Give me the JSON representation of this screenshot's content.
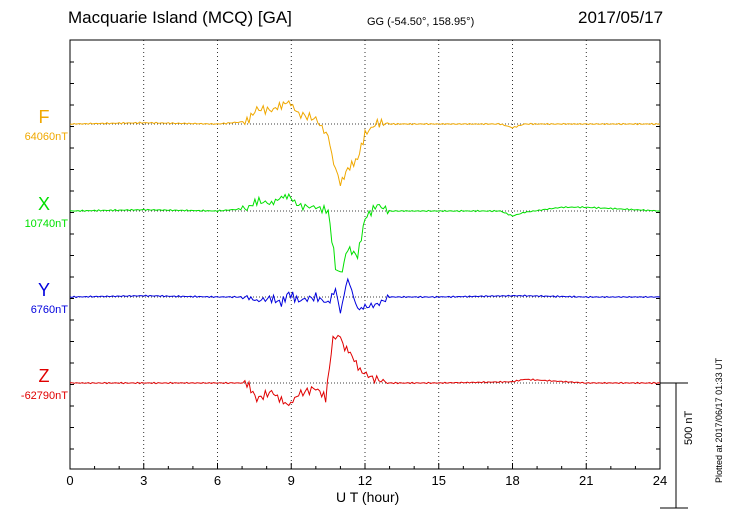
{
  "header": {
    "title": "Macquarie Island (MCQ)  [GA]",
    "coords": "GG (-54.50°, 158.95°)",
    "date": "2017/05/17",
    "plotted": "Plotted at 2017/06/17 01:33 UT"
  },
  "chart_data": {
    "type": "line",
    "xlabel": "U T (hour)",
    "xlim": [
      0,
      24
    ],
    "xticks": [
      "0",
      "3",
      "6",
      "9",
      "12",
      "15",
      "18",
      "21",
      "24"
    ],
    "scale_label": "500 nT",
    "scale_nT": 500,
    "grid": true,
    "series": [
      {
        "name": "F",
        "baseline": "64060nT",
        "color": "#f0a800",
        "x": [
          0,
          3,
          6,
          7.2,
          7.6,
          8.2,
          8.6,
          8.9,
          9.3,
          10.0,
          10.5,
          10.8,
          11.0,
          11.3,
          11.7,
          12.0,
          12.5,
          13,
          15,
          17.5,
          18,
          18.5,
          21,
          24
        ],
        "y": [
          0,
          5,
          0,
          10,
          60,
          55,
          75,
          90,
          40,
          20,
          -50,
          -190,
          -240,
          -180,
          -140,
          -40,
          5,
          0,
          0,
          0,
          -15,
          0,
          0,
          0
        ]
      },
      {
        "name": "X",
        "baseline": "10740nT",
        "color": "#00e000",
        "x": [
          0,
          3,
          6,
          7.2,
          7.6,
          8.2,
          8.6,
          8.9,
          9.3,
          10.0,
          10.5,
          10.8,
          11.0,
          11.3,
          11.7,
          12.0,
          12.5,
          13,
          15,
          17.5,
          18,
          18.5,
          20,
          21,
          24
        ],
        "y": [
          0,
          5,
          0,
          10,
          40,
          30,
          55,
          60,
          20,
          15,
          0,
          -220,
          -260,
          -150,
          -180,
          -30,
          25,
          0,
          0,
          0,
          -20,
          -5,
          15,
          15,
          0
        ]
      },
      {
        "name": "Y",
        "baseline": "6760nT",
        "color": "#0000dd",
        "x": [
          0,
          3,
          6,
          7.2,
          7.6,
          8.2,
          8.6,
          8.9,
          9.3,
          10.0,
          10.5,
          10.8,
          11.0,
          11.3,
          11.7,
          12.0,
          12.5,
          13,
          15,
          18,
          18.5,
          21,
          24
        ],
        "y": [
          0,
          5,
          0,
          0,
          -15,
          -5,
          -25,
          15,
          -15,
          0,
          -25,
          30,
          -60,
          75,
          -50,
          -40,
          -30,
          0,
          0,
          5,
          5,
          0,
          0
        ]
      },
      {
        "name": "Z",
        "baseline": "-62790nT",
        "color": "#e00000",
        "x": [
          0,
          3,
          6,
          7.2,
          7.6,
          8.2,
          8.6,
          8.9,
          9.3,
          10.0,
          10.4,
          10.7,
          10.9,
          11.1,
          11.4,
          11.8,
          12.3,
          13,
          15,
          18,
          18.5,
          21,
          24
        ],
        "y": [
          0,
          0,
          0,
          0,
          -65,
          -35,
          -70,
          -90,
          -45,
          -20,
          -60,
          180,
          200,
          150,
          120,
          50,
          20,
          0,
          0,
          5,
          15,
          0,
          0
        ]
      }
    ]
  }
}
